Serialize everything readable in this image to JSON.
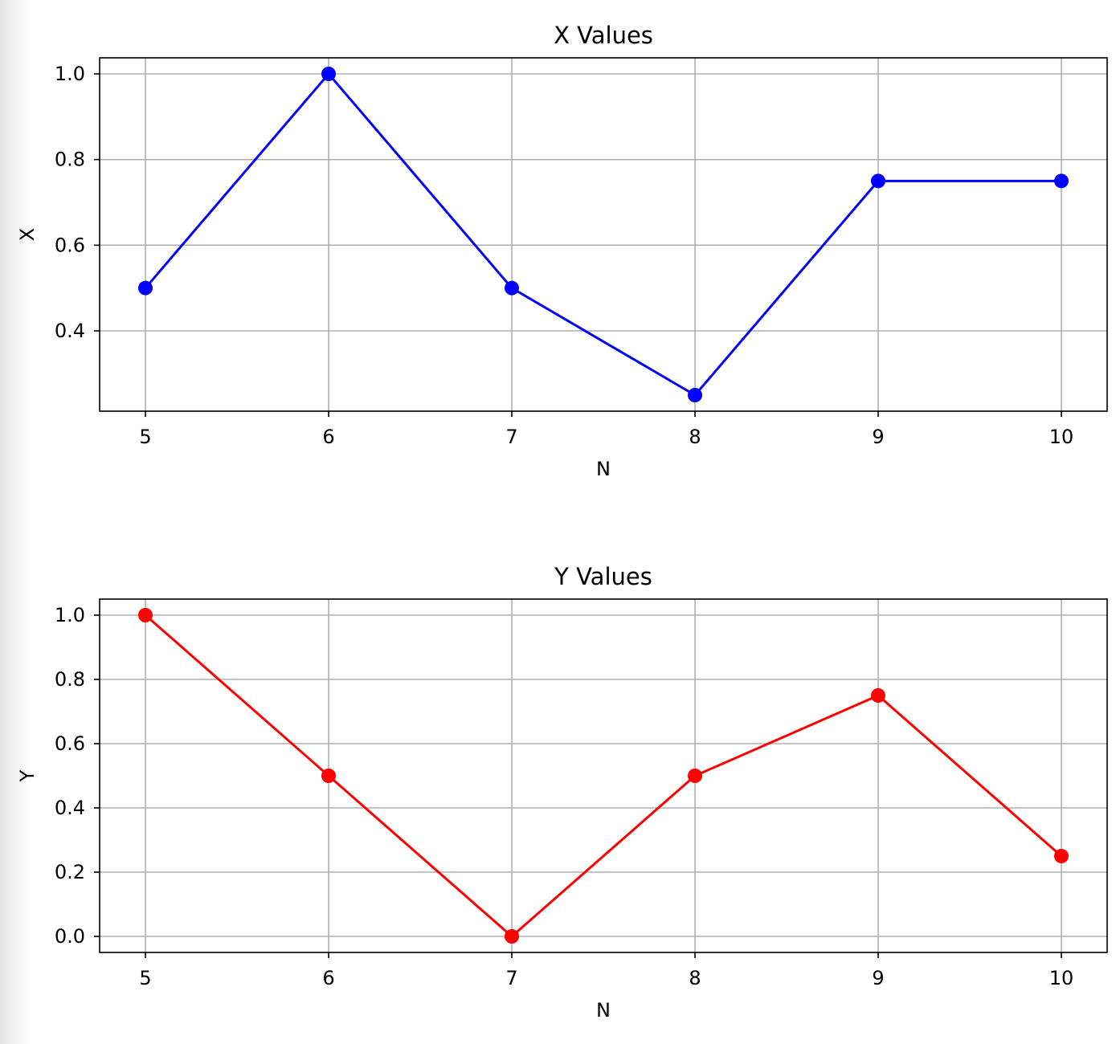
{
  "chart_data": [
    {
      "type": "line",
      "title": "X Values",
      "xlabel": "N",
      "ylabel": "X",
      "x": [
        5,
        6,
        7,
        8,
        9,
        10
      ],
      "series": [
        {
          "values": [
            0.5,
            1.0,
            0.5,
            0.25,
            0.75,
            0.75
          ],
          "color": "#0000ff",
          "marker": "circle"
        }
      ],
      "xlim": [
        4.75,
        10.25
      ],
      "ylim": [
        0.2125,
        1.0375
      ],
      "xticks": [
        "5",
        "6",
        "7",
        "8",
        "9",
        "10"
      ],
      "yticks": [
        "0.4",
        "0.6",
        "0.8",
        "1.0"
      ],
      "grid": true
    },
    {
      "type": "line",
      "title": "Y Values",
      "xlabel": "N",
      "ylabel": "Y",
      "x": [
        5,
        6,
        7,
        8,
        9,
        10
      ],
      "series": [
        {
          "values": [
            1.0,
            0.5,
            0.0,
            0.5,
            0.75,
            0.25
          ],
          "color": "#ff0000",
          "marker": "circle"
        }
      ],
      "xlim": [
        4.75,
        10.25
      ],
      "ylim": [
        -0.05,
        1.05
      ],
      "xticks": [
        "5",
        "6",
        "7",
        "8",
        "9",
        "10"
      ],
      "yticks": [
        "0.0",
        "0.2",
        "0.4",
        "0.6",
        "0.8",
        "1.0"
      ],
      "grid": true
    }
  ]
}
